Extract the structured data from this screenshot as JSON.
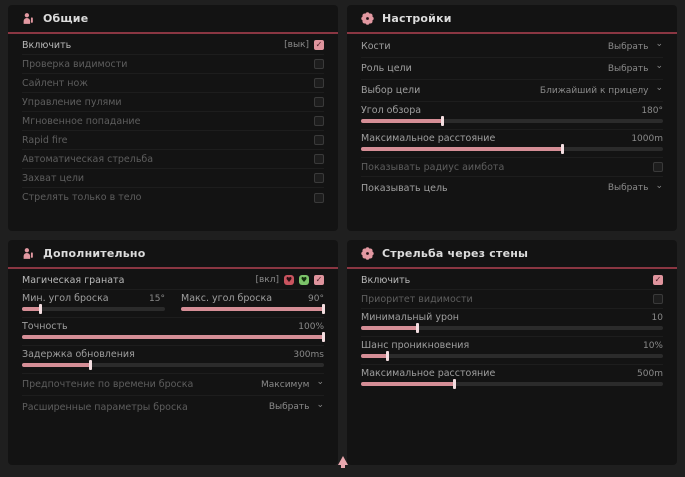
{
  "colors": {
    "accent": "#df949d",
    "header_line": "#8a3642",
    "panel_bg": "#131313",
    "page_bg": "#1f1f1f",
    "slider_fill": "#d58e96",
    "badge_red": "#c9545f",
    "badge_green": "#7cc46a"
  },
  "general": {
    "title": "Общие",
    "enable": {
      "label": "Включить",
      "hint": "[вык]",
      "checked": true
    },
    "items": [
      {
        "label": "Проверка видимости",
        "checked": false
      },
      {
        "label": "Сайлент нож",
        "checked": false
      },
      {
        "label": "Управление пулями",
        "checked": false
      },
      {
        "label": "Мгновенное попадание",
        "checked": false
      },
      {
        "label": "Rapid fire",
        "checked": false
      },
      {
        "label": "Автоматическая стрельба",
        "checked": false
      },
      {
        "label": "Захват цели",
        "checked": false
      },
      {
        "label": "Стрелять только в тело",
        "checked": false
      }
    ]
  },
  "settings": {
    "title": "Настройки",
    "bones": {
      "label": "Кости",
      "value": "Выбрать"
    },
    "target_role": {
      "label": "Роль цели",
      "value": "Выбрать"
    },
    "target_select": {
      "label": "Выбор цели",
      "value": "Ближайший к прицелу"
    },
    "fov": {
      "label": "Угол обзора",
      "value": "180°",
      "percent": 27
    },
    "max_distance": {
      "label": "Максимальное расстояние",
      "value": "1000m",
      "percent": 67
    },
    "show_radius": {
      "label": "Показывать радиус аимбота",
      "checked": false
    },
    "show_target": {
      "label": "Показывать цель",
      "value": "Выбрать"
    }
  },
  "extra": {
    "title": "Дополнительно",
    "magic_grenade": {
      "label": "Магическая граната",
      "hint": "[вкл]",
      "checked": true
    },
    "min_angle": {
      "label": "Мин. угол броска",
      "value": "15°",
      "percent": 13
    },
    "max_angle": {
      "label": "Макс. угол броска",
      "value": "90°",
      "percent": 100
    },
    "accuracy": {
      "label": "Точность",
      "value": "100%",
      "percent": 100
    },
    "update_delay": {
      "label": "Задержка обновления",
      "value": "300ms",
      "percent": 23
    },
    "throw_time": {
      "label": "Предпочтение по времени броска",
      "value": "Максимум"
    },
    "advanced": {
      "label": "Расширенные параметры броска",
      "value": "Выбрать"
    }
  },
  "walls": {
    "title": "Стрельба через стены",
    "enable": {
      "label": "Включить",
      "checked": true
    },
    "visibility_priority": {
      "label": "Приоритет видимости",
      "checked": false
    },
    "min_damage": {
      "label": "Минимальный урон",
      "value": "10",
      "percent": 19
    },
    "penetration_chance": {
      "label": "Шанс проникновения",
      "value": "10%",
      "percent": 9
    },
    "max_distance": {
      "label": "Максимальное расстояние",
      "value": "500m",
      "percent": 31
    }
  }
}
